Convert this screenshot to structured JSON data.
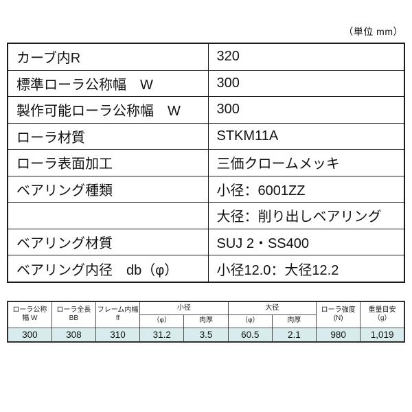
{
  "unit_label": "（単位 mm）",
  "colors": {
    "highlight_row": "#d8ecee",
    "table_border": "#1a1a1a"
  },
  "main_table": {
    "rows": [
      {
        "label": "カーブ内R",
        "value": "320"
      },
      {
        "label": "標準ローラ公称幅　W",
        "value": "300"
      },
      {
        "label": "製作可能ローラ公称幅　W",
        "value": "300"
      },
      {
        "label": "ローラ材質",
        "value": "STKM11A"
      },
      {
        "label": "ローラ表面加工",
        "value": "三価クロームメッキ"
      },
      {
        "label": "ベアリング種類",
        "value": "小径：6001ZZ"
      },
      {
        "label": "",
        "value": "大径：削り出しベアリング"
      },
      {
        "label": "ベアリング材質",
        "value": "SUJ 2・SS400"
      },
      {
        "label": "ベアリング内径　db（φ）",
        "value": "小径12.0：大径12.2"
      }
    ]
  },
  "dim_table": {
    "col_headers": [
      {
        "l1": "ローラ公称",
        "l2": "幅 W"
      },
      {
        "l1": "ローラ全長",
        "l2": "BB"
      },
      {
        "l1": "フレーム内幅",
        "l2": "ff"
      },
      {
        "l1": "ローラ強度",
        "l2": "(N)"
      },
      {
        "l1": "重量目安",
        "l2": "（g）"
      }
    ],
    "groups": [
      {
        "title": "小径",
        "sub": [
          "（φ）",
          "肉厚"
        ]
      },
      {
        "title": "大径",
        "sub": [
          "（φ）",
          "肉厚"
        ]
      }
    ],
    "values": [
      "300",
      "308",
      "310",
      "31.2",
      "3.5",
      "60.5",
      "2.1",
      "980",
      "1,019"
    ]
  }
}
